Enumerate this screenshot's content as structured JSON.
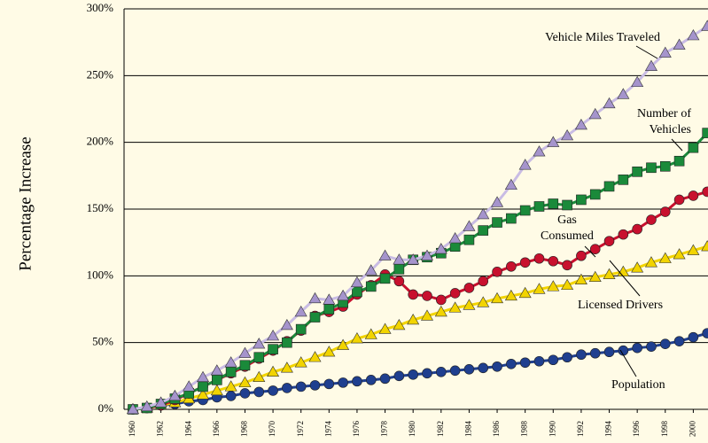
{
  "chart_data": {
    "type": "line",
    "ylabel": "Percentage Increase",
    "x": [
      1960,
      1961,
      1962,
      1963,
      1964,
      1965,
      1966,
      1967,
      1968,
      1969,
      1970,
      1971,
      1972,
      1973,
      1974,
      1975,
      1976,
      1977,
      1978,
      1979,
      1980,
      1981,
      1982,
      1983,
      1984,
      1985,
      1986,
      1987,
      1988,
      1989,
      1990,
      1991,
      1992,
      1993,
      1994,
      1995,
      1996,
      1997,
      1998,
      1999,
      2000,
      2001
    ],
    "xlim": [
      1959.37,
      2001.05
    ],
    "xticks": [
      1960,
      1962,
      1964,
      1966,
      1968,
      1970,
      1972,
      1974,
      1976,
      1978,
      1980,
      1982,
      1984,
      1986,
      1988,
      1990,
      1992,
      1994,
      1996,
      1998,
      2000
    ],
    "ylim": [
      0,
      300
    ],
    "yticks": [
      {
        "value": 0,
        "label": "0%"
      },
      {
        "value": 50,
        "label": "50%"
      },
      {
        "value": 100,
        "label": "100%"
      },
      {
        "value": 150,
        "label": "150%"
      },
      {
        "value": 200,
        "label": "200%"
      },
      {
        "value": 250,
        "label": "250%"
      },
      {
        "value": 300,
        "label": "300%"
      }
    ],
    "grid": true,
    "series": [
      {
        "name": "Population",
        "color": "#1f3f8f",
        "marker": "circle",
        "values": [
          0,
          1,
          3,
          4,
          6,
          7,
          9,
          10,
          12,
          13,
          14,
          16,
          17,
          18,
          19,
          20,
          21,
          22,
          23,
          25,
          26,
          27,
          28,
          29,
          30,
          31,
          32,
          34,
          35,
          36,
          37,
          39,
          41,
          42,
          43,
          44,
          46,
          47,
          49,
          51,
          54,
          57
        ]
      },
      {
        "name": "Licensed Drivers",
        "color": "#f2d400",
        "marker": "triangle",
        "values": [
          0,
          1,
          3,
          5,
          8,
          11,
          14,
          17,
          20,
          24,
          28,
          31,
          35,
          39,
          43,
          48,
          53,
          56,
          60,
          63,
          67,
          70,
          73,
          76,
          78,
          80,
          83,
          85,
          87,
          90,
          92,
          93,
          97,
          99,
          101,
          103,
          106,
          110,
          113,
          116,
          119,
          122
        ]
      },
      {
        "name": "Gas Consumed",
        "color": "#c8102e",
        "marker": "circle",
        "values": [
          0,
          1,
          3,
          7,
          12,
          17,
          22,
          27,
          32,
          38,
          44,
          51,
          59,
          70,
          73,
          77,
          86,
          93,
          101,
          96,
          86,
          85,
          82,
          87,
          91,
          96,
          103,
          107,
          110,
          113,
          111,
          108,
          115,
          120,
          126,
          131,
          135,
          142,
          148,
          157,
          160,
          163
        ]
      },
      {
        "name": "Number of Vehicles",
        "color": "#1a8a3a",
        "marker": "square",
        "values": [
          0,
          1,
          4,
          8,
          12,
          17,
          22,
          28,
          33,
          39,
          45,
          50,
          60,
          69,
          75,
          80,
          88,
          92,
          98,
          105,
          112,
          114,
          117,
          122,
          127,
          134,
          140,
          143,
          149,
          152,
          154,
          153,
          157,
          161,
          167,
          172,
          178,
          181,
          182,
          186,
          196,
          207
        ]
      },
      {
        "name": "Vehicle Miles Traveled",
        "color": "#a594cc",
        "marker": "triangle",
        "values": [
          0,
          2,
          5,
          10,
          17,
          24,
          29,
          35,
          42,
          49,
          55,
          63,
          73,
          83,
          82,
          85,
          95,
          104,
          115,
          112,
          112,
          115,
          120,
          128,
          137,
          146,
          155,
          168,
          183,
          193,
          200,
          205,
          213,
          221,
          229,
          236,
          245,
          257,
          267,
          273,
          280,
          287
        ]
      }
    ]
  }
}
